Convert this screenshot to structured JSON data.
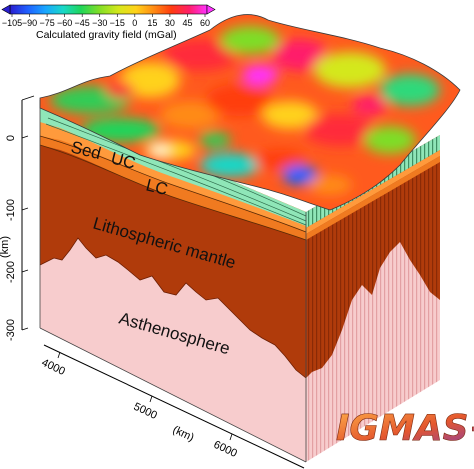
{
  "colorbar": {
    "title": "Calculated gravity field (mGal)",
    "ticks": [
      "−105",
      "−90",
      "−75",
      "−60",
      "−45",
      "−30",
      "−15",
      "0",
      "15",
      "30",
      "45",
      "60"
    ],
    "colors": [
      "#2a1ecf",
      "#2060ff",
      "#19a6ff",
      "#19d8c8",
      "#1fd65a",
      "#7ede28",
      "#d4e81c",
      "#ffd21a",
      "#ff8b14",
      "#ff3c10",
      "#ff1f6a",
      "#ff33ff"
    ]
  },
  "depth_axis": {
    "label": "(km)",
    "ticks": [
      "0",
      "-100",
      "-200",
      "-300"
    ]
  },
  "distance_axis": {
    "label": "(km)",
    "ticks": [
      "4000",
      "5000",
      "6000"
    ]
  },
  "layers": {
    "sed": "Sed",
    "uc": "UC",
    "lc": "LC",
    "mantle": "Lithospheric mantle",
    "asthenosphere": "Asthenosphere"
  },
  "logo": {
    "text": "IGMAS+"
  },
  "colors": {
    "sediment": "#8fe6b8",
    "upper_crust": "#ff9a3c",
    "lower_crust": "#f07a20",
    "mantle": "#b03b0b",
    "asthenosphere": "#f7cccd",
    "slice_stripe": "#e7a8aa"
  }
}
